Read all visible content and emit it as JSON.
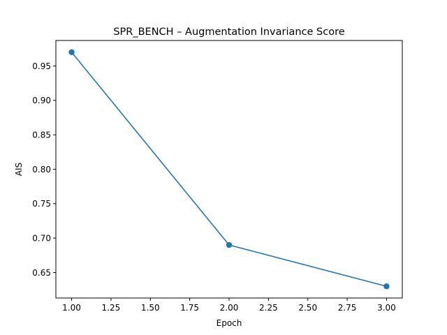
{
  "chart_data": {
    "type": "line",
    "title": "SPR_BENCH – Augmentation Invariance Score",
    "xlabel": "Epoch",
    "ylabel": "AIS",
    "xlim": [
      0.9,
      3.1
    ],
    "ylim": [
      0.613,
      0.987
    ],
    "x_ticks": [
      1.0,
      1.25,
      1.5,
      1.75,
      2.0,
      2.25,
      2.5,
      2.75,
      3.0
    ],
    "x_tick_labels": [
      "1.00",
      "1.25",
      "1.50",
      "1.75",
      "2.00",
      "2.25",
      "2.50",
      "2.75",
      "3.00"
    ],
    "y_ticks": [
      0.65,
      0.7,
      0.75,
      0.8,
      0.85,
      0.9,
      0.95
    ],
    "y_tick_labels": [
      "0.65",
      "0.70",
      "0.75",
      "0.80",
      "0.85",
      "0.90",
      "0.95"
    ],
    "grid": false,
    "series": [
      {
        "color": "#1f77b4",
        "marker": "circle",
        "x": [
          1,
          2,
          3
        ],
        "y": [
          0.97,
          0.69,
          0.63
        ]
      }
    ]
  }
}
